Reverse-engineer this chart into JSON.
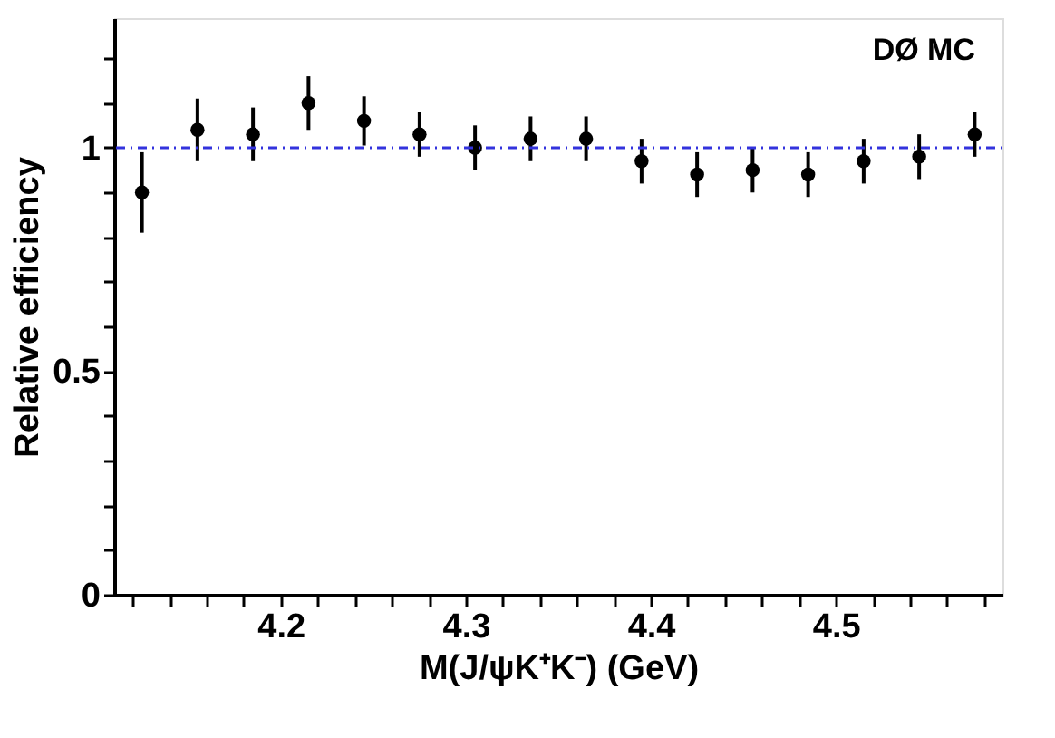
{
  "chart_data": {
    "type": "scatter",
    "xlabel": "M(J/ψK⁺K⁻) (GeV)",
    "ylabel": "Relative efficiency",
    "annotations": [
      "DØ MC"
    ],
    "x": [
      4.125,
      4.155,
      4.185,
      4.215,
      4.245,
      4.275,
      4.305,
      4.335,
      4.365,
      4.395,
      4.425,
      4.455,
      4.485,
      4.515,
      4.545,
      4.575
    ],
    "series": [
      {
        "color": "#000000",
        "values": [
          0.9,
          1.04,
          1.03,
          1.1,
          1.06,
          1.03,
          1.0,
          1.02,
          1.02,
          0.97,
          0.94,
          0.95,
          0.94,
          0.97,
          0.98,
          1.03
        ],
        "errors": [
          0.09,
          0.07,
          0.06,
          0.06,
          0.055,
          0.05,
          0.05,
          0.05,
          0.05,
          0.05,
          0.05,
          0.05,
          0.05,
          0.05,
          0.05,
          0.05
        ]
      }
    ],
    "marker": "circle",
    "xlim": [
      4.11,
      4.59
    ],
    "ylim": [
      0,
      1.29
    ],
    "xticks": [
      {
        "value": 4.12,
        "label": null
      },
      {
        "value": 4.14,
        "label": null
      },
      {
        "value": 4.16,
        "label": null
      },
      {
        "value": 4.18,
        "label": null
      },
      4.2,
      {
        "value": 4.22,
        "label": null
      },
      {
        "value": 4.24,
        "label": null
      },
      {
        "value": 4.26,
        "label": null
      },
      {
        "value": 4.28,
        "label": null
      },
      4.3,
      {
        "value": 4.32,
        "label": null
      },
      {
        "value": 4.34,
        "label": null
      },
      {
        "value": 4.36,
        "label": null
      },
      {
        "value": 4.38,
        "label": null
      },
      4.4,
      {
        "value": 4.42,
        "label": null
      },
      {
        "value": 4.44,
        "label": null
      },
      {
        "value": 4.46,
        "label": null
      },
      {
        "value": 4.48,
        "label": null
      },
      4.5,
      {
        "value": 4.52,
        "label": null
      },
      {
        "value": 4.54,
        "label": null
      },
      {
        "value": 4.56,
        "label": null
      },
      {
        "value": 4.58,
        "label": null
      }
    ],
    "yticks": [
      0,
      {
        "value": 0.1,
        "label": null
      },
      {
        "value": 0.2,
        "label": null
      },
      {
        "value": 0.3,
        "label": null
      },
      {
        "value": 0.4,
        "label": null
      },
      0.5,
      {
        "value": 0.6,
        "label": null
      },
      {
        "value": 0.7,
        "label": null
      },
      {
        "value": 0.8,
        "label": null
      },
      {
        "value": 0.9,
        "label": null
      },
      1,
      {
        "value": 1.1,
        "label": null
      },
      {
        "value": 1.2,
        "label": null
      }
    ],
    "ref_lines": [
      {
        "axis": "y",
        "value": 1,
        "color": "#3333dd",
        "line_style": "dotted"
      }
    ],
    "grid": false
  }
}
